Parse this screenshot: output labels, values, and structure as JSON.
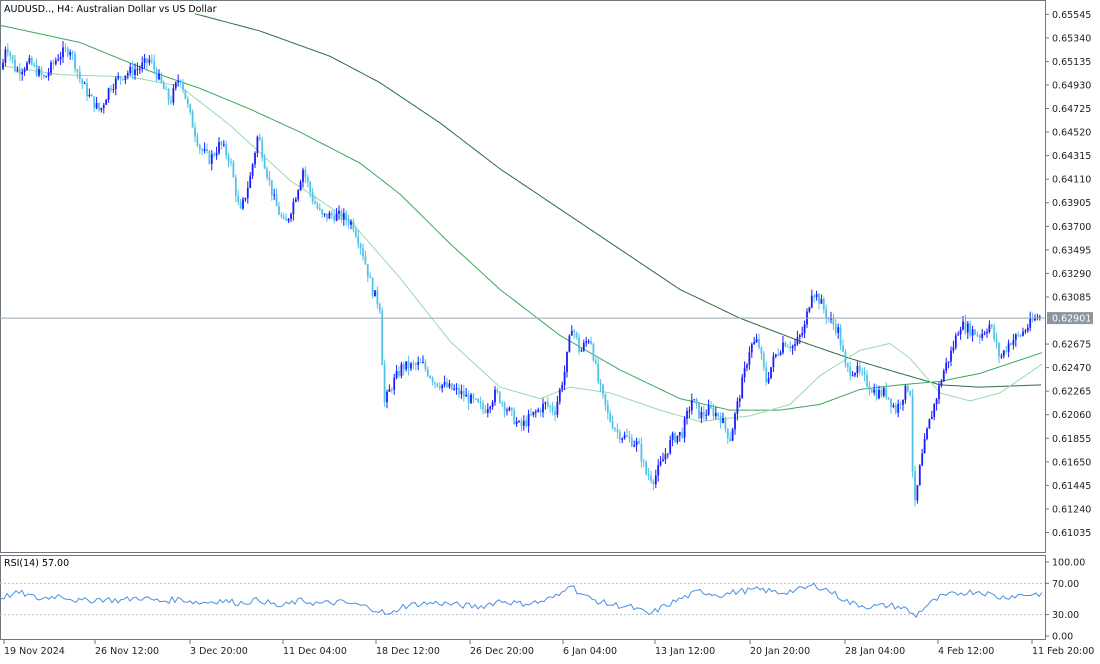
{
  "main_chart": {
    "title": "AUDUSD.., H4:  Australian Dollar vs US Dollar",
    "current_price": "0.62901",
    "current_price_value": 0.62901,
    "price_labels": [
      "0.65545",
      "0.65340",
      "0.65135",
      "0.64930",
      "0.64725",
      "0.64520",
      "0.64315",
      "0.64110",
      "0.63905",
      "0.63700",
      "0.63495",
      "0.63290",
      "0.63085",
      "0.62675",
      "0.62470",
      "0.62265",
      "0.62060",
      "0.61855",
      "0.61650",
      "0.61445",
      "0.61240",
      "0.61035"
    ],
    "price_values": [
      0.65545,
      0.6534,
      0.65135,
      0.6493,
      0.64725,
      0.6452,
      0.64315,
      0.6411,
      0.63905,
      0.637,
      0.63495,
      0.6329,
      0.63085,
      0.62675,
      0.6247,
      0.62265,
      0.6206,
      0.61855,
      0.6165,
      0.61445,
      0.6124,
      0.61035
    ]
  },
  "rsi_panel": {
    "label": "RSI(14) 57.00",
    "current_value": 57.0,
    "levels": [
      "100.00",
      "70.00",
      "30.00",
      "0.00"
    ],
    "level_values": [
      100,
      70,
      30,
      0
    ]
  },
  "time_axis": {
    "labels": [
      "19 Nov 2024",
      "26 Nov 12:00",
      "3 Dec 20:00",
      "11 Dec 04:00",
      "18 Dec 12:00",
      "26 Dec 20:00",
      "6 Jan 04:00",
      "13 Jan 12:00",
      "20 Jan 20:00",
      "28 Jan 04:00",
      "4 Feb 12:00",
      "11 Feb 20:00"
    ]
  },
  "colors": {
    "bull_candle": "#1a1aff",
    "bear_candle": "#4fc3e8",
    "ma_fast": "#9ad9b0",
    "ma_mid": "#3aa860",
    "ma_slow": "#2e6b4a",
    "rsi_line": "#4a90e2",
    "price_line": "#9aa6b2",
    "price_label_bg": "#8c96a0"
  },
  "chart_data": {
    "type": "candlestick",
    "symbol": "AUDUSD..",
    "timeframe": "H4",
    "ylim": [
      0.609,
      0.656
    ],
    "close_path": [
      [
        0,
        0.6495
      ],
      [
        6,
        0.653
      ],
      [
        16,
        0.6505
      ],
      [
        30,
        0.6512
      ],
      [
        44,
        0.6498
      ],
      [
        58,
        0.6518
      ],
      [
        70,
        0.6525
      ],
      [
        80,
        0.6498
      ],
      [
        90,
        0.6482
      ],
      [
        100,
        0.647
      ],
      [
        110,
        0.6492
      ],
      [
        125,
        0.6503
      ],
      [
        140,
        0.6508
      ],
      [
        150,
        0.6515
      ],
      [
        160,
        0.6496
      ],
      [
        170,
        0.6478
      ],
      [
        180,
        0.6502
      ],
      [
        190,
        0.6466
      ],
      [
        200,
        0.6438
      ],
      [
        210,
        0.6428
      ],
      [
        220,
        0.6442
      ],
      [
        230,
        0.6428
      ],
      [
        240,
        0.638
      ],
      [
        250,
        0.6412
      ],
      [
        258,
        0.645
      ],
      [
        266,
        0.642
      ],
      [
        275,
        0.639
      ],
      [
        285,
        0.637
      ],
      [
        295,
        0.6395
      ],
      [
        303,
        0.642
      ],
      [
        312,
        0.6395
      ],
      [
        322,
        0.6378
      ],
      [
        333,
        0.638
      ],
      [
        343,
        0.6378
      ],
      [
        353,
        0.6372
      ],
      [
        362,
        0.635
      ],
      [
        372,
        0.6315
      ],
      [
        380,
        0.63
      ],
      [
        384,
        0.6215
      ],
      [
        392,
        0.6232
      ],
      [
        402,
        0.6248
      ],
      [
        412,
        0.6248
      ],
      [
        422,
        0.625
      ],
      [
        435,
        0.6235
      ],
      [
        447,
        0.623
      ],
      [
        460,
        0.6225
      ],
      [
        472,
        0.6218
      ],
      [
        484,
        0.621
      ],
      [
        496,
        0.6225
      ],
      [
        508,
        0.621
      ],
      [
        520,
        0.6195
      ],
      [
        532,
        0.6205
      ],
      [
        545,
        0.6215
      ],
      [
        555,
        0.621
      ],
      [
        565,
        0.6245
      ],
      [
        572,
        0.6285
      ],
      [
        580,
        0.626
      ],
      [
        590,
        0.6275
      ],
      [
        598,
        0.6235
      ],
      [
        608,
        0.6205
      ],
      [
        618,
        0.619
      ],
      [
        628,
        0.6185
      ],
      [
        638,
        0.618
      ],
      [
        646,
        0.6155
      ],
      [
        654,
        0.615
      ],
      [
        662,
        0.6165
      ],
      [
        672,
        0.6185
      ],
      [
        682,
        0.619
      ],
      [
        692,
        0.622
      ],
      [
        700,
        0.6205
      ],
      [
        710,
        0.621
      ],
      [
        720,
        0.6205
      ],
      [
        730,
        0.6185
      ],
      [
        740,
        0.6225
      ],
      [
        750,
        0.6265
      ],
      [
        758,
        0.627
      ],
      [
        766,
        0.6235
      ],
      [
        774,
        0.6255
      ],
      [
        784,
        0.627
      ],
      [
        794,
        0.6265
      ],
      [
        804,
        0.628
      ],
      [
        812,
        0.6315
      ],
      [
        820,
        0.6305
      ],
      [
        828,
        0.629
      ],
      [
        838,
        0.628
      ],
      [
        846,
        0.6245
      ],
      [
        856,
        0.6245
      ],
      [
        866,
        0.6235
      ],
      [
        876,
        0.6225
      ],
      [
        886,
        0.6225
      ],
      [
        896,
        0.621
      ],
      [
        904,
        0.6225
      ],
      [
        910,
        0.6232
      ],
      [
        914,
        0.612
      ],
      [
        920,
        0.616
      ],
      [
        928,
        0.6195
      ],
      [
        936,
        0.622
      ],
      [
        944,
        0.6245
      ],
      [
        952,
        0.6262
      ],
      [
        960,
        0.6285
      ],
      [
        970,
        0.628
      ],
      [
        980,
        0.6275
      ],
      [
        990,
        0.6285
      ],
      [
        1000,
        0.6255
      ],
      [
        1010,
        0.627
      ],
      [
        1020,
        0.6275
      ],
      [
        1030,
        0.6285
      ],
      [
        1038,
        0.6292
      ],
      [
        1042,
        0.629
      ]
    ],
    "ma_fast": [
      [
        0,
        0.651
      ],
      [
        60,
        0.6502
      ],
      [
        130,
        0.65
      ],
      [
        180,
        0.6492
      ],
      [
        230,
        0.6458
      ],
      [
        290,
        0.641
      ],
      [
        350,
        0.6375
      ],
      [
        400,
        0.6325
      ],
      [
        450,
        0.627
      ],
      [
        500,
        0.623
      ],
      [
        540,
        0.622
      ],
      [
        570,
        0.623
      ],
      [
        610,
        0.6225
      ],
      [
        660,
        0.621
      ],
      [
        700,
        0.62
      ],
      [
        750,
        0.6205
      ],
      [
        790,
        0.6215
      ],
      [
        820,
        0.624
      ],
      [
        860,
        0.6262
      ],
      [
        890,
        0.6268
      ],
      [
        910,
        0.6255
      ],
      [
        940,
        0.6225
      ],
      [
        970,
        0.6218
      ],
      [
        1000,
        0.6225
      ],
      [
        1042,
        0.625
      ]
    ],
    "ma_mid": [
      [
        0,
        0.6545
      ],
      [
        80,
        0.653
      ],
      [
        150,
        0.6505
      ],
      [
        200,
        0.649
      ],
      [
        250,
        0.6472
      ],
      [
        300,
        0.6452
      ],
      [
        360,
        0.6425
      ],
      [
        400,
        0.6398
      ],
      [
        450,
        0.6355
      ],
      [
        500,
        0.6315
      ],
      [
        560,
        0.6275
      ],
      [
        620,
        0.6245
      ],
      [
        680,
        0.622
      ],
      [
        730,
        0.621
      ],
      [
        780,
        0.621
      ],
      [
        820,
        0.6215
      ],
      [
        860,
        0.6228
      ],
      [
        900,
        0.6232
      ],
      [
        940,
        0.6235
      ],
      [
        980,
        0.6242
      ],
      [
        1042,
        0.626
      ]
    ],
    "ma_slow": [
      [
        195,
        0.6555
      ],
      [
        260,
        0.654
      ],
      [
        330,
        0.6518
      ],
      [
        380,
        0.6495
      ],
      [
        440,
        0.646
      ],
      [
        500,
        0.642
      ],
      [
        560,
        0.6385
      ],
      [
        620,
        0.635
      ],
      [
        680,
        0.6315
      ],
      [
        740,
        0.629
      ],
      [
        800,
        0.627
      ],
      [
        850,
        0.6255
      ],
      [
        900,
        0.6242
      ],
      [
        940,
        0.6232
      ],
      [
        980,
        0.623
      ],
      [
        1042,
        0.6232
      ]
    ],
    "rsi_path": [
      [
        0,
        52
      ],
      [
        20,
        58
      ],
      [
        40,
        50
      ],
      [
        60,
        55
      ],
      [
        80,
        47
      ],
      [
        100,
        50
      ],
      [
        120,
        48
      ],
      [
        140,
        52
      ],
      [
        160,
        47
      ],
      [
        180,
        50
      ],
      [
        200,
        45
      ],
      [
        220,
        48
      ],
      [
        240,
        45
      ],
      [
        260,
        49
      ],
      [
        280,
        40
      ],
      [
        300,
        48
      ],
      [
        320,
        44
      ],
      [
        340,
        46
      ],
      [
        360,
        42
      ],
      [
        380,
        35
      ],
      [
        390,
        28
      ],
      [
        400,
        40
      ],
      [
        420,
        44
      ],
      [
        440,
        45
      ],
      [
        460,
        42
      ],
      [
        480,
        40
      ],
      [
        500,
        48
      ],
      [
        520,
        44
      ],
      [
        540,
        46
      ],
      [
        560,
        55
      ],
      [
        570,
        72
      ],
      [
        575,
        62
      ],
      [
        590,
        50
      ],
      [
        610,
        43
      ],
      [
        630,
        40
      ],
      [
        650,
        30
      ],
      [
        660,
        38
      ],
      [
        680,
        50
      ],
      [
        700,
        60
      ],
      [
        720,
        55
      ],
      [
        740,
        60
      ],
      [
        760,
        62
      ],
      [
        780,
        58
      ],
      [
        800,
        62
      ],
      [
        815,
        68
      ],
      [
        830,
        60
      ],
      [
        850,
        45
      ],
      [
        870,
        40
      ],
      [
        890,
        42
      ],
      [
        905,
        38
      ],
      [
        915,
        28
      ],
      [
        925,
        40
      ],
      [
        940,
        52
      ],
      [
        960,
        58
      ],
      [
        980,
        60
      ],
      [
        1000,
        52
      ],
      [
        1020,
        55
      ],
      [
        1042,
        57
      ]
    ]
  }
}
